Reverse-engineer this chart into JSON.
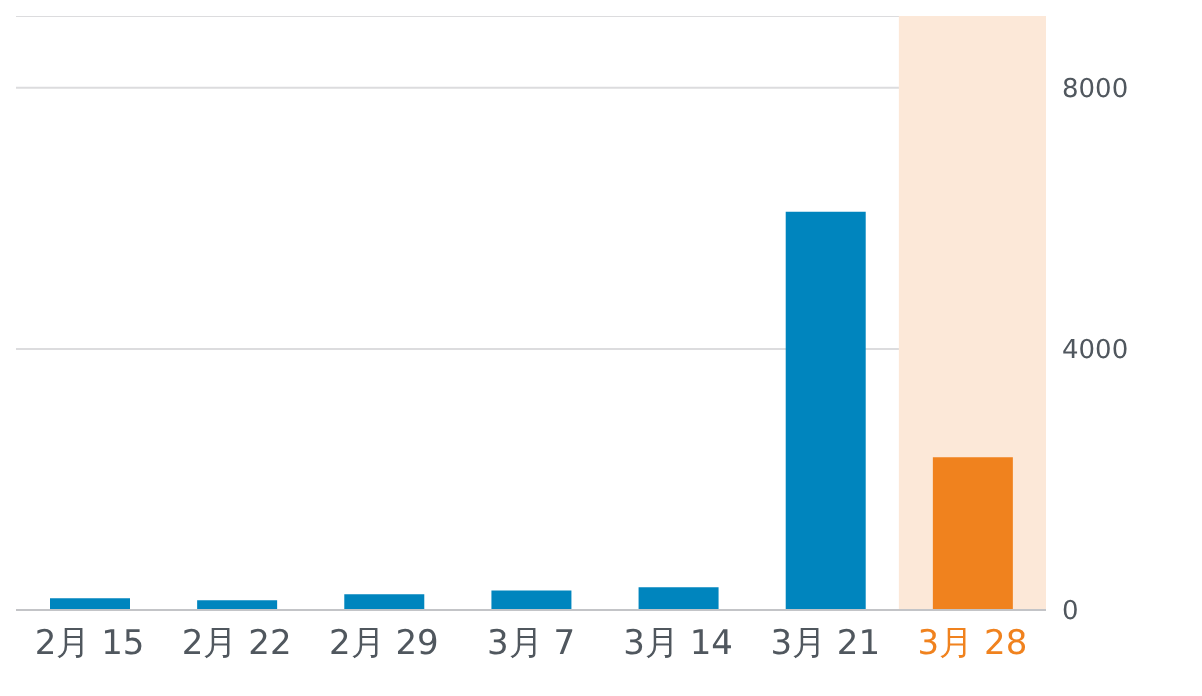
{
  "chart_data": {
    "type": "bar",
    "categories": [
      "2月 15",
      "2月 22",
      "2月 29",
      "3月 7",
      "3月 14",
      "3月 21",
      "3月 28"
    ],
    "values": [
      180,
      150,
      240,
      300,
      350,
      6100,
      2340
    ],
    "colors": [
      "#0085be",
      "#0085be",
      "#0085be",
      "#0085be",
      "#0085be",
      "#0085be",
      "#f0821e"
    ],
    "ylim": [
      0,
      9100
    ],
    "yticks": [
      0,
      4000,
      8000
    ],
    "grid": "y",
    "bands": [
      {
        "axis": "x",
        "from": "3月 28",
        "to": "3月 28",
        "color": "#fce8d8"
      }
    ]
  }
}
